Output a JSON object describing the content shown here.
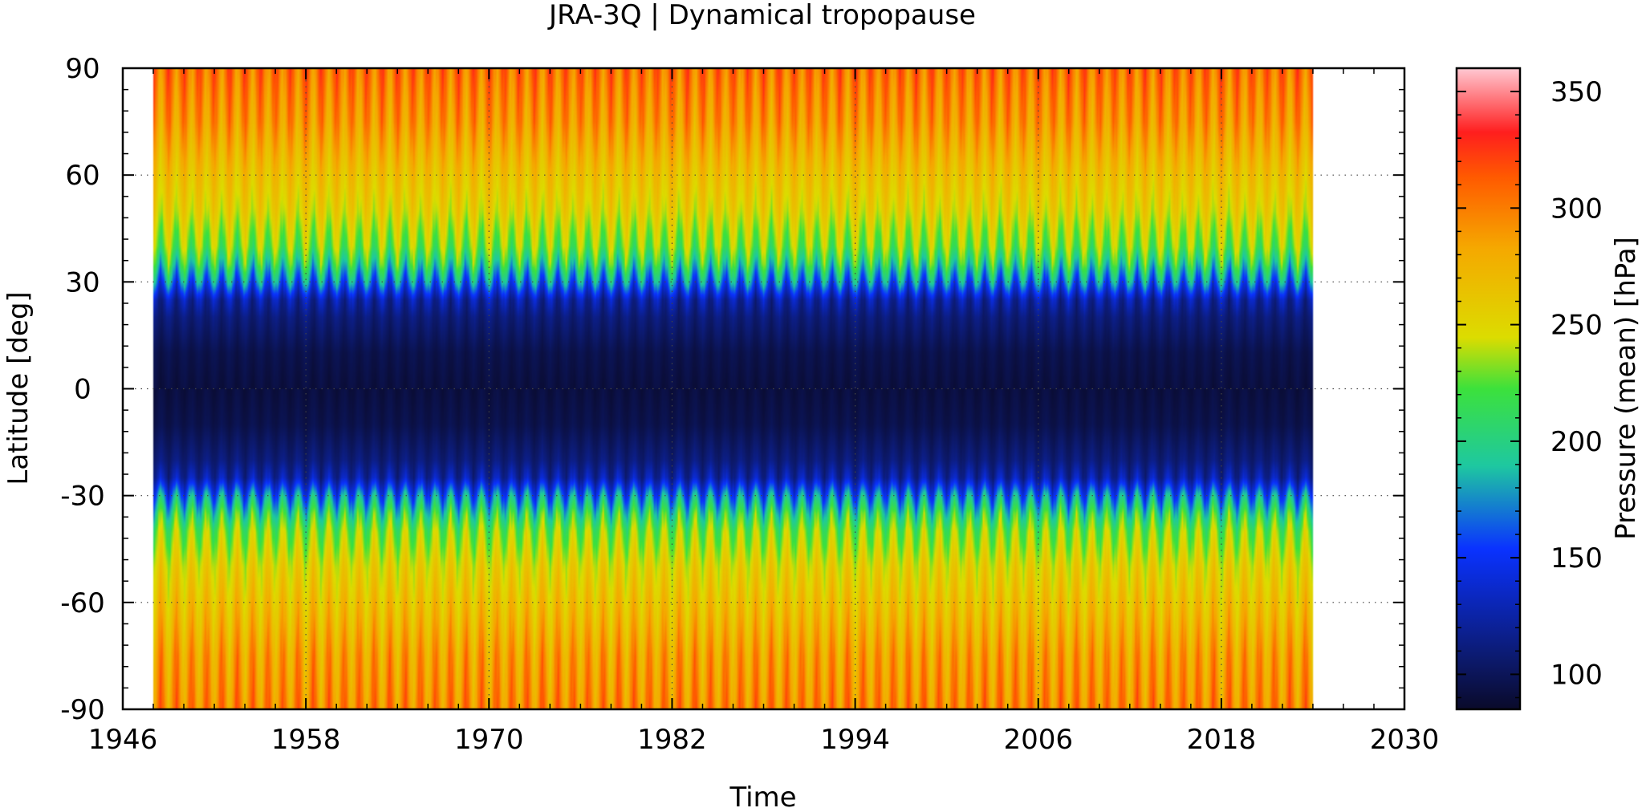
{
  "chart_data": {
    "type": "heatmap",
    "title": "JRA-3Q | Dynamical tropopause",
    "xlabel": "Time",
    "ylabel": "Latitude [deg]",
    "colorbar_label": "Pressure (mean) [hPa]",
    "xlim": [
      1946,
      2030
    ],
    "ylim": [
      -90,
      90
    ],
    "x_ticks": [
      "1946",
      "1958",
      "1970",
      "1982",
      "1994",
      "2006",
      "2018",
      "2030"
    ],
    "y_ticks": [
      "90",
      "60",
      "30",
      "0",
      "-30",
      "-60",
      "-90"
    ],
    "colorbar_range": [
      85,
      360
    ],
    "colorbar_ticks": [
      "350",
      "300",
      "250",
      "200",
      "150",
      "100"
    ],
    "data_x_range": [
      1948,
      2024
    ],
    "grid": true,
    "seasonal_cycle": "annual",
    "latitude_profile": {
      "latitude": [
        -90,
        -75,
        -60,
        -50,
        -40,
        -35,
        -30,
        -25,
        -20,
        -10,
        0,
        10,
        20,
        25,
        30,
        35,
        40,
        50,
        60,
        75,
        90
      ],
      "pressure_mean": [
        295,
        285,
        265,
        252,
        230,
        205,
        170,
        125,
        110,
        96,
        92,
        96,
        110,
        125,
        170,
        205,
        230,
        252,
        265,
        290,
        305
      ],
      "seasonal_amplitude": [
        22,
        22,
        18,
        16,
        22,
        30,
        30,
        15,
        6,
        3,
        3,
        3,
        6,
        15,
        30,
        30,
        22,
        16,
        14,
        20,
        20
      ]
    },
    "colormap": {
      "stops": [
        0,
        0.08,
        0.25,
        0.38,
        0.5,
        0.58,
        0.72,
        0.83,
        0.9,
        1
      ],
      "colors": [
        "#0a0a2a",
        "#0c1a6e",
        "#0a32ff",
        "#1ec8a0",
        "#3ce13c",
        "#dcdc00",
        "#f5a800",
        "#ff5a00",
        "#ff1e1e",
        "#ffc8d2"
      ]
    }
  }
}
